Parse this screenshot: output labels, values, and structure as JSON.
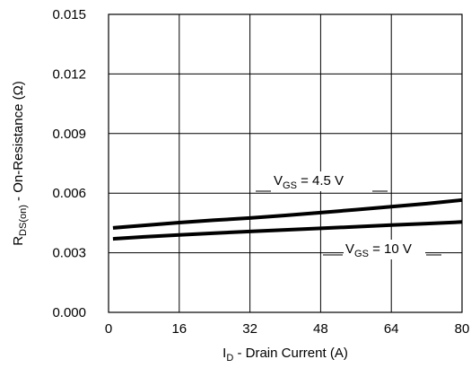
{
  "chart_data": {
    "type": "line",
    "title": "",
    "xlabel": {
      "main": "I",
      "sub": "D",
      "rest": " - Drain Current (A)"
    },
    "ylabel": {
      "main": "R",
      "sub": "DS(on)",
      "rest": " - On-Resistance (Ω)"
    },
    "xlim": [
      0,
      80
    ],
    "ylim": [
      0.0,
      0.015
    ],
    "x_ticks": [
      0,
      16,
      32,
      48,
      64,
      80
    ],
    "x_tick_labels": [
      "0",
      "16",
      "32",
      "48",
      "64",
      "80"
    ],
    "y_ticks": [
      0.0,
      0.003,
      0.006,
      0.009,
      0.012,
      0.015
    ],
    "y_tick_labels": [
      "0.000",
      "0.003",
      "0.006",
      "0.009",
      "0.012",
      "0.015"
    ],
    "grid": true,
    "series": [
      {
        "name": "VGS = 4.5 V",
        "label": {
          "main": "V",
          "sub": "GS",
          "rest": " = 4.5 V"
        },
        "color": "#000000",
        "x": [
          1,
          8,
          16,
          24,
          32,
          40,
          48,
          56,
          64,
          72,
          80
        ],
        "y": [
          0.00425,
          0.00438,
          0.00452,
          0.00464,
          0.00475,
          0.00488,
          0.00502,
          0.00517,
          0.00532,
          0.00547,
          0.00565
        ]
      },
      {
        "name": "VGS = 10 V",
        "label": {
          "main": "V",
          "sub": "GS",
          "rest": " = 10 V"
        },
        "color": "#000000",
        "x": [
          1,
          8,
          16,
          24,
          32,
          40,
          48,
          56,
          64,
          72,
          80
        ],
        "y": [
          0.0037,
          0.0038,
          0.0039,
          0.00399,
          0.00407,
          0.00415,
          0.00423,
          0.00431,
          0.00439,
          0.00447,
          0.00455
        ]
      }
    ]
  }
}
